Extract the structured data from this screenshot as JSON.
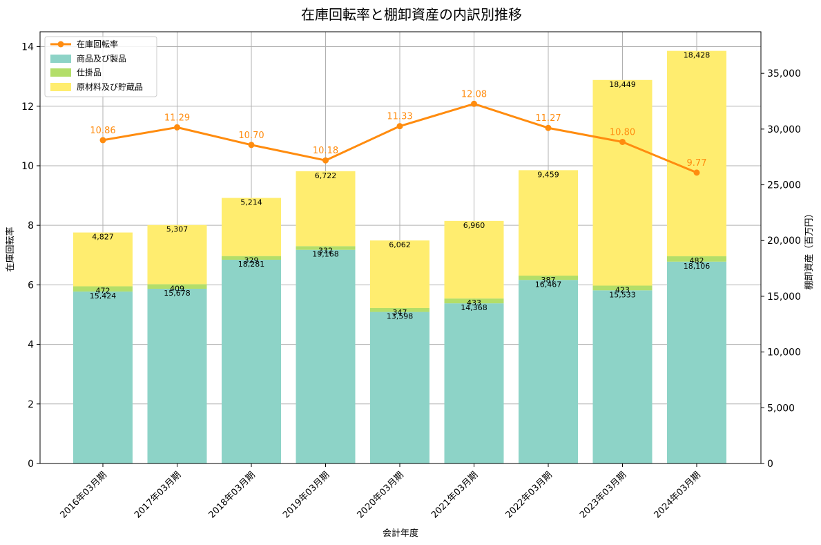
{
  "chart_data": {
    "type": "bar",
    "title": "在庫回転率と棚卸資産の内訳別推移",
    "xlabel": "会計年度",
    "ylabel_left": "在庫回転率",
    "ylabel_right": "棚卸資産（百万円）",
    "categories": [
      "2016年03月期",
      "2017年03月期",
      "2018年03月期",
      "2019年03月期",
      "2020年03月期",
      "2021年03月期",
      "2022年03月期",
      "2023年03月期",
      "2024年03月期"
    ],
    "stacked_bars": [
      {
        "name": "商品及び製品",
        "color": "#8dd3c7",
        "values": [
          15424,
          15678,
          18281,
          19168,
          13598,
          14368,
          16467,
          15533,
          18106
        ],
        "labels": [
          "15,424",
          "15,678",
          "18,281",
          "19,168",
          "13,598",
          "14,368",
          "16,467",
          "15,533",
          "18,106"
        ]
      },
      {
        "name": "仕掛品",
        "color": "#b3de69",
        "values": [
          472,
          409,
          329,
          332,
          347,
          433,
          387,
          423,
          482
        ],
        "labels": [
          "472",
          "409",
          "329",
          "332",
          "347",
          "433",
          "387",
          "423",
          "482"
        ]
      },
      {
        "name": "原材料及び貯蔵品",
        "color": "#ffed6f",
        "values": [
          4827,
          5307,
          5214,
          6722,
          6062,
          6960,
          9459,
          18449,
          18428
        ],
        "labels": [
          "4,827",
          "5,307",
          "5,214",
          "6,722",
          "6,062",
          "6,960",
          "9,459",
          "18,449",
          "18,428"
        ]
      }
    ],
    "line": {
      "name": "在庫回転率",
      "color": "#ff8c0f",
      "values": [
        10.86,
        11.29,
        10.7,
        10.18,
        11.33,
        12.08,
        11.27,
        10.8,
        9.77
      ],
      "labels": [
        "10.86",
        "11.29",
        "10.70",
        "10.18",
        "11.33",
        "12.08",
        "11.27",
        "10.80",
        "9.77"
      ]
    },
    "ylim_left": [
      0,
      14.5
    ],
    "ylim_right": [
      0,
      38729
    ],
    "yticks_left": [
      "0",
      "2",
      "4",
      "6",
      "8",
      "10",
      "12",
      "14"
    ],
    "yticks_right": [
      "0",
      "5,000",
      "10,000",
      "15,000",
      "20,000",
      "25,000",
      "30,000",
      "35,000"
    ],
    "grid": true,
    "legend_position": "top-left"
  }
}
